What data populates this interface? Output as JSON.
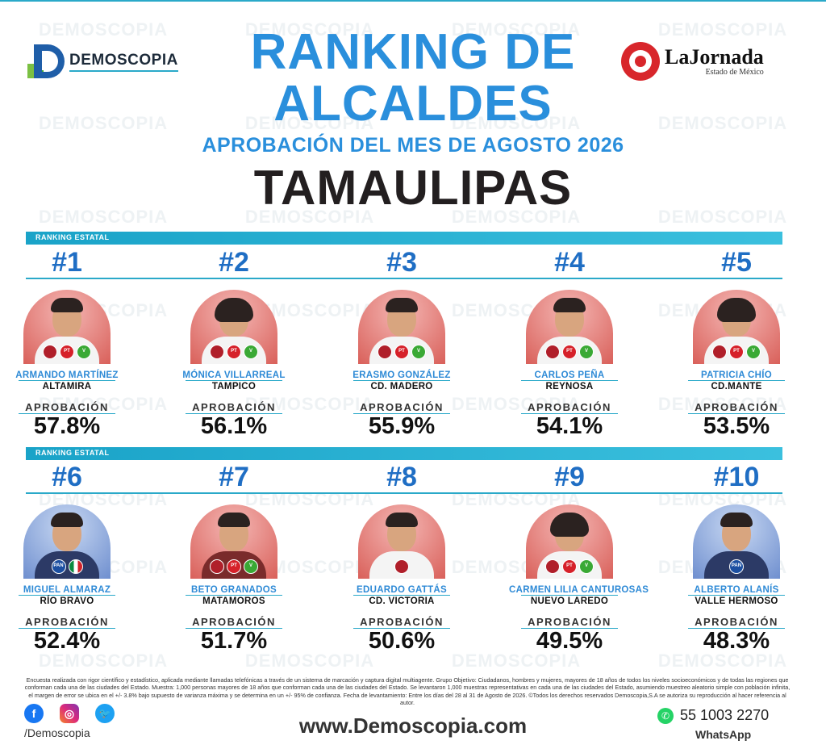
{
  "header": {
    "brand": "DEMOSCOPIA",
    "title_line1": "RANKING DE",
    "title_line2": "ALCALDES",
    "subtitle": "APROBACIÓN DEL MES DE AGOSTO 2026",
    "state": "TAMAULIPAS",
    "partner": "LaJornada",
    "partner_sub": "Estado de México"
  },
  "section_label": "RANKING ESTATAL",
  "approval_label": "APROBACIÓN",
  "row1": [
    {
      "rank": "#1",
      "name": "ARMANDO MARTÍNEZ",
      "city": "ALTAMIRA",
      "pct": "57.8%",
      "parties": [
        "morena",
        "pt",
        "verde"
      ]
    },
    {
      "rank": "#2",
      "name": "MÓNICA VILLARREAL",
      "city": "TAMPICO",
      "pct": "56.1%",
      "parties": [
        "morena",
        "pt",
        "verde"
      ]
    },
    {
      "rank": "#3",
      "name": "ERASMO GONZÁLEZ",
      "city": "CD. MADERO",
      "pct": "55.9%",
      "parties": [
        "morena",
        "pt",
        "verde"
      ]
    },
    {
      "rank": "#4",
      "name": "CARLOS PEÑA",
      "city": "REYNOSA",
      "pct": "54.1%",
      "parties": [
        "morena",
        "pt",
        "verde"
      ]
    },
    {
      "rank": "#5",
      "name": "PATRICIA CHÍO",
      "city": "CD.MANTE",
      "pct": "53.5%",
      "parties": [
        "morena",
        "pt",
        "verde"
      ]
    }
  ],
  "row2": [
    {
      "rank": "#6",
      "name": "MIGUEL ALMARAZ",
      "city": "RÍO BRAVO",
      "pct": "52.4%",
      "parties": [
        "pan",
        "mx"
      ]
    },
    {
      "rank": "#7",
      "name": "BETO GRANADOS",
      "city": "MATAMOROS",
      "pct": "51.7%",
      "parties": [
        "morena",
        "pt",
        "verde"
      ]
    },
    {
      "rank": "#8",
      "name": "EDUARDO GATTÁS",
      "city": "CD. VICTORIA",
      "pct": "50.6%",
      "parties": [
        "morena"
      ]
    },
    {
      "rank": "#9",
      "name": "CARMEN LILIA CANTUROSAS",
      "city": "NUEVO LAREDO",
      "pct": "49.5%",
      "parties": [
        "morena",
        "pt",
        "verde"
      ]
    },
    {
      "rank": "#10",
      "name": "ALBERTO ALANÍS",
      "city": "VALLE HERMOSO",
      "pct": "48.3%",
      "parties": [
        "pan"
      ]
    }
  ],
  "disclaimer": "Encuesta realizada con rigor científico y estadístico, aplicada mediante llamadas telefónicas a través de un sistema de marcación y captura digital multiagente. Grupo Objetivo: Ciudadanos, hombres y mujeres, mayores de 18 años de todos los niveles socioeconómicos y de todas las regiones que conforman cada una de las ciudades del Estado. Muestra: 1,000 personas mayores de 18 años que conforman cada una de las ciudades del Estado. Se levantaron 1,000 muestras representativas en cada una de las ciudades del Estado, asumiendo muestreo aleatorio simple con población infinita, el margen de error se ubica en el +/- 3.8% bajo supuesto de varianza máxima y se determina en un +/- 95% de confianza. Fecha de levantamiento: Entre los días del 28 al 31 de Agosto de 2026. ©Todos los derechos reservados Demoscopia,S.A se autoriza su reproducción al hacer referencia al autor.",
  "footer": {
    "handle": "/Demoscopia",
    "website": "www.Demoscopia.com",
    "phone": "55 1003 2270",
    "phone_label": "WhatsApp"
  }
}
